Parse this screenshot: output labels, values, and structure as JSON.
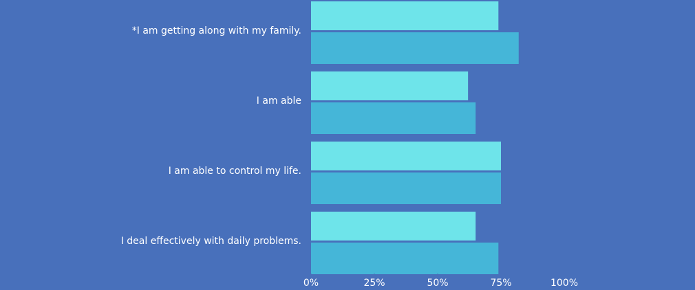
{
  "chart_data": {
    "type": "bar",
    "orientation": "horizontal",
    "categories": [
      "*I am getting along with my family.",
      "I am able",
      "I am able to control my life.",
      "I deal effectively with daily problems."
    ],
    "series": [
      {
        "color": "#6ee4ea",
        "values": [
          74,
          62,
          75,
          65
        ]
      },
      {
        "color": "#45b6d8",
        "values": [
          82,
          65,
          75,
          74
        ]
      }
    ],
    "xlim": [
      0,
      100
    ],
    "xticks": [
      {
        "value": 0,
        "label": "0%"
      },
      {
        "value": 25,
        "label": "25%"
      },
      {
        "value": 50,
        "label": "50%"
      },
      {
        "value": 75,
        "label": "75%"
      },
      {
        "value": 100,
        "label": "100%"
      }
    ]
  }
}
